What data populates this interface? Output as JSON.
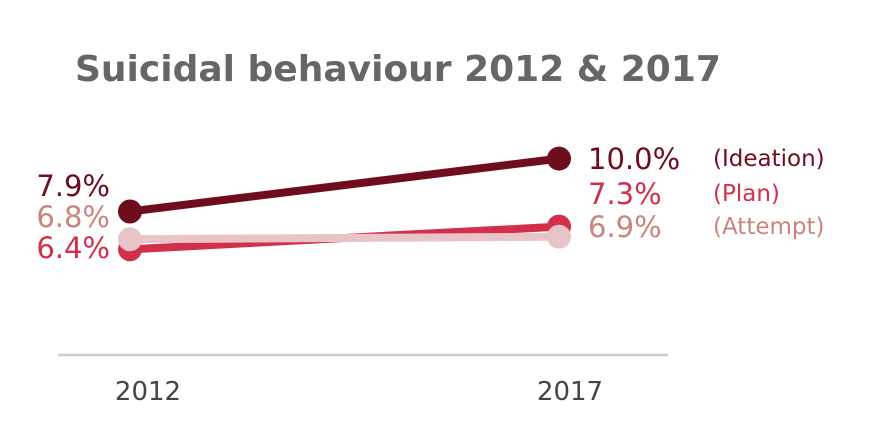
{
  "chart_data": {
    "type": "line",
    "title": "Suicidal behaviour 2012 & 2017",
    "categories": [
      "2012",
      "2017"
    ],
    "ylim": [
      0,
      12
    ],
    "grid": false,
    "legend": "right",
    "series": [
      {
        "name": "(Ideation)",
        "values": [
          7.9,
          10.0
        ],
        "labels": [
          "7.9%",
          "10.0%"
        ],
        "color": "#6e0d1e",
        "label_color": "#6e0d1e"
      },
      {
        "name": "(Plan)",
        "values": [
          6.4,
          7.3
        ],
        "labels": [
          "6.4%",
          "7.3%"
        ],
        "color": "#d22f4b",
        "label_color": "#d22f4b"
      },
      {
        "name": "(Attempt)",
        "values": [
          6.8,
          6.9
        ],
        "labels": [
          "6.8%",
          "6.9%"
        ],
        "color": "#e8c3c7",
        "label_color": "#c9857d"
      }
    ]
  },
  "colors": {
    "title": "#666666",
    "axis": "#cccccc",
    "tick": "#444444"
  }
}
